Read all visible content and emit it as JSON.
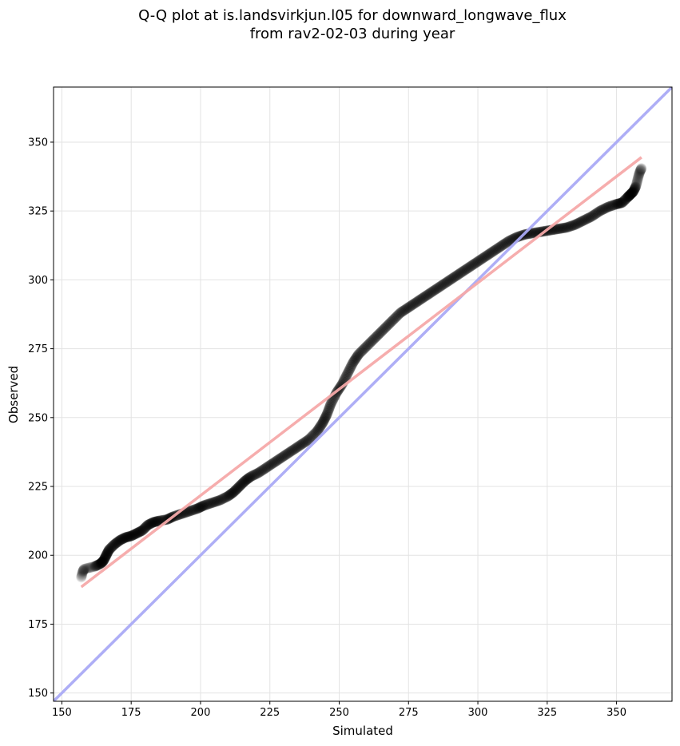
{
  "chart_data": {
    "type": "scatter",
    "title_lines": [
      "Q-Q plot at is.landsvirkjun.l05 for downward_longwave_flux",
      "from rav2-02-03 during year"
    ],
    "xlabel": "Simulated",
    "ylabel": "Observed",
    "xlim": [
      147,
      370
    ],
    "ylim": [
      147,
      370
    ],
    "xticks": [
      150,
      175,
      200,
      225,
      250,
      275,
      300,
      325,
      350
    ],
    "yticks": [
      150,
      175,
      200,
      225,
      250,
      275,
      300,
      325,
      350
    ],
    "grid": true,
    "legend": "none",
    "colors": {
      "points": "#000000",
      "identity_line": "#aaaaf5",
      "fit_line": "#f5a9a9"
    },
    "qq_quantiles": [
      [
        157,
        192
      ],
      [
        157.5,
        194
      ],
      [
        158,
        195
      ],
      [
        160,
        195.5
      ],
      [
        162,
        196
      ],
      [
        164,
        197
      ],
      [
        165,
        198
      ],
      [
        166,
        200
      ],
      [
        167,
        202
      ],
      [
        169,
        204
      ],
      [
        171,
        205.5
      ],
      [
        173,
        206.5
      ],
      [
        175,
        207
      ],
      [
        177,
        208
      ],
      [
        179,
        209
      ],
      [
        181,
        211
      ],
      [
        183,
        212
      ],
      [
        185,
        212.5
      ],
      [
        188,
        213
      ],
      [
        190,
        214
      ],
      [
        193,
        215
      ],
      [
        196,
        216
      ],
      [
        199,
        217
      ],
      [
        201,
        218
      ],
      [
        204,
        219
      ],
      [
        207,
        220
      ],
      [
        210,
        221.5
      ],
      [
        212,
        223
      ],
      [
        214,
        225
      ],
      [
        216,
        227
      ],
      [
        218,
        228.5
      ],
      [
        221,
        230
      ],
      [
        224,
        232
      ],
      [
        227,
        234
      ],
      [
        230,
        236
      ],
      [
        233,
        238
      ],
      [
        236,
        240
      ],
      [
        239,
        242
      ],
      [
        242,
        245
      ],
      [
        244,
        248
      ],
      [
        245.5,
        251
      ],
      [
        247,
        255
      ],
      [
        249,
        259
      ],
      [
        251,
        262
      ],
      [
        253,
        266
      ],
      [
        255,
        270
      ],
      [
        257,
        273
      ],
      [
        260,
        276
      ],
      [
        263,
        279
      ],
      [
        266,
        282
      ],
      [
        269,
        285
      ],
      [
        272,
        288
      ],
      [
        275,
        290
      ],
      [
        278,
        292
      ],
      [
        281,
        294
      ],
      [
        284,
        296
      ],
      [
        287,
        298
      ],
      [
        290,
        300
      ],
      [
        293,
        302
      ],
      [
        296,
        304
      ],
      [
        299,
        306
      ],
      [
        302,
        308
      ],
      [
        305,
        310
      ],
      [
        308,
        312
      ],
      [
        311,
        314
      ],
      [
        314,
        315.5
      ],
      [
        317,
        316.5
      ],
      [
        320,
        317
      ],
      [
        323,
        317.5
      ],
      [
        326,
        318
      ],
      [
        329,
        318.5
      ],
      [
        332,
        319
      ],
      [
        335,
        320
      ],
      [
        338,
        321.5
      ],
      [
        341,
        323
      ],
      [
        344,
        325
      ],
      [
        347,
        326.5
      ],
      [
        350,
        327.5
      ],
      [
        352,
        328
      ],
      [
        354,
        330
      ],
      [
        355,
        331
      ],
      [
        356,
        332
      ],
      [
        357,
        334
      ],
      [
        357.5,
        336
      ],
      [
        358,
        338
      ],
      [
        358.5,
        339.5
      ],
      [
        359,
        340.5
      ]
    ],
    "identity_line": [
      [
        147,
        147
      ],
      [
        370,
        370
      ]
    ],
    "fit_line": [
      [
        157,
        188.5
      ],
      [
        359,
        344.5
      ]
    ]
  }
}
